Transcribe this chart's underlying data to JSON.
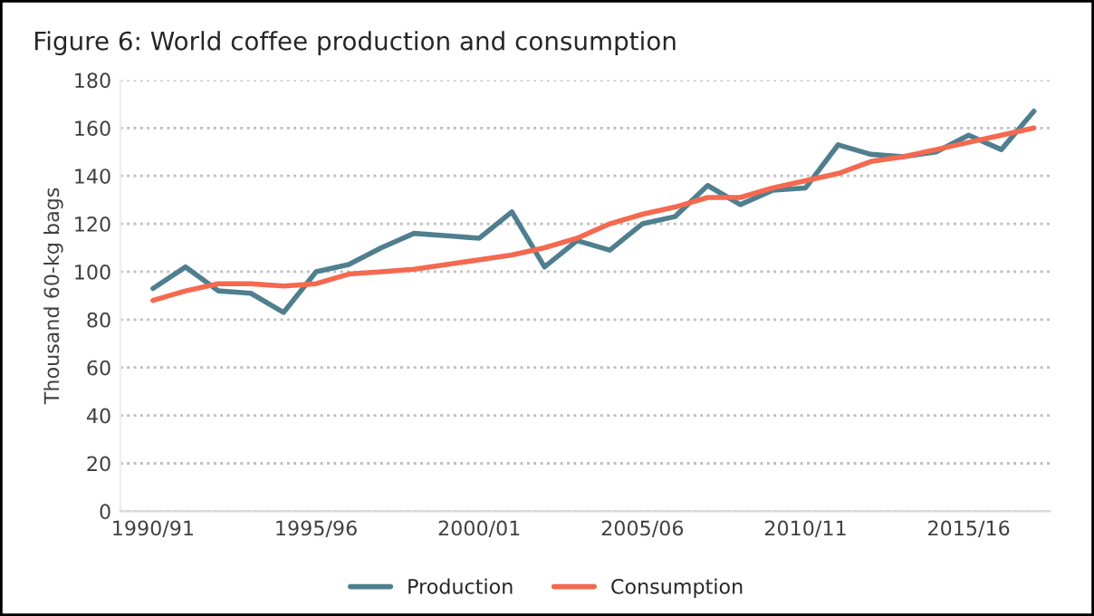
{
  "chart_data": {
    "type": "line",
    "title": "Figure 6: World coffee production and consumption",
    "ylabel": "Thousand 60-kg bags",
    "categories": [
      "1990/91",
      null,
      null,
      null,
      null,
      "1995/96",
      null,
      null,
      null,
      null,
      "2000/01",
      null,
      null,
      null,
      null,
      "2005/06",
      null,
      null,
      null,
      null,
      "2010/11",
      null,
      null,
      null,
      null,
      "2015/16",
      null,
      null
    ],
    "series": [
      {
        "name": "Production",
        "color": "#4f7f8f",
        "values": [
          93,
          102,
          92,
          91,
          83,
          100,
          103,
          110,
          116,
          115,
          114,
          125,
          102,
          113,
          109,
          120,
          123,
          136,
          128,
          134,
          135,
          153,
          149,
          148,
          150,
          157,
          151,
          167
        ]
      },
      {
        "name": "Consumption",
        "color": "#f4694f",
        "values": [
          88,
          92,
          95,
          95,
          94,
          95,
          99,
          100,
          101,
          103,
          105,
          107,
          110,
          114,
          120,
          124,
          127,
          131,
          131,
          135,
          138,
          141,
          146,
          148,
          151,
          154,
          157,
          160
        ]
      }
    ],
    "ylim": [
      0,
      180
    ],
    "yticks": [
      0,
      20,
      40,
      60,
      80,
      100,
      120,
      140,
      160,
      180
    ],
    "grid": "y",
    "legend": "bottom",
    "marker": "none",
    "line_style": "solid"
  }
}
